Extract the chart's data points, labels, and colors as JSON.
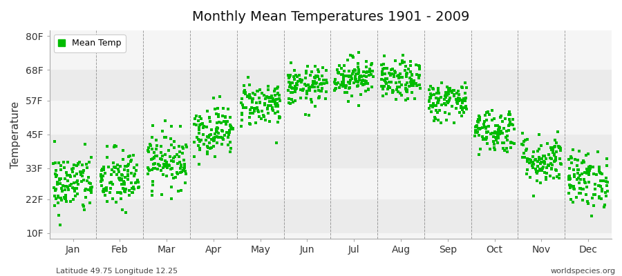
{
  "title": "Monthly Mean Temperatures 1901 - 2009",
  "ylabel": "Temperature",
  "footer_left": "Latitude 49.75 Longitude 12.25",
  "footer_right": "worldspecies.org",
  "legend_label": "Mean Temp",
  "marker_color": "#00bb00",
  "months": [
    "Jan",
    "Feb",
    "Mar",
    "Apr",
    "May",
    "Jun",
    "Jul",
    "Aug",
    "Sep",
    "Oct",
    "Nov",
    "Dec"
  ],
  "ytick_values": [
    10,
    22,
    33,
    45,
    57,
    68,
    80
  ],
  "ytick_labels": [
    "10F",
    "22F",
    "33F",
    "45F",
    "57F",
    "68F",
    "80F"
  ],
  "ylim": [
    8,
    82
  ],
  "xlim": [
    0,
    12
  ],
  "background_color": "#ffffff",
  "plot_bg_color": "#f5f5f5",
  "band_colors": [
    "#ebebeb",
    "#f5f5f5"
  ],
  "grid_color": "#777777",
  "num_years": 109,
  "mean_temps_f": [
    27.5,
    29.0,
    36.0,
    46.5,
    56.0,
    62.0,
    65.5,
    64.0,
    57.0,
    46.5,
    36.0,
    29.0
  ],
  "std_temps_f": [
    5.5,
    5.5,
    5.0,
    4.5,
    4.0,
    3.5,
    3.5,
    3.5,
    3.5,
    4.0,
    4.5,
    5.0
  ]
}
